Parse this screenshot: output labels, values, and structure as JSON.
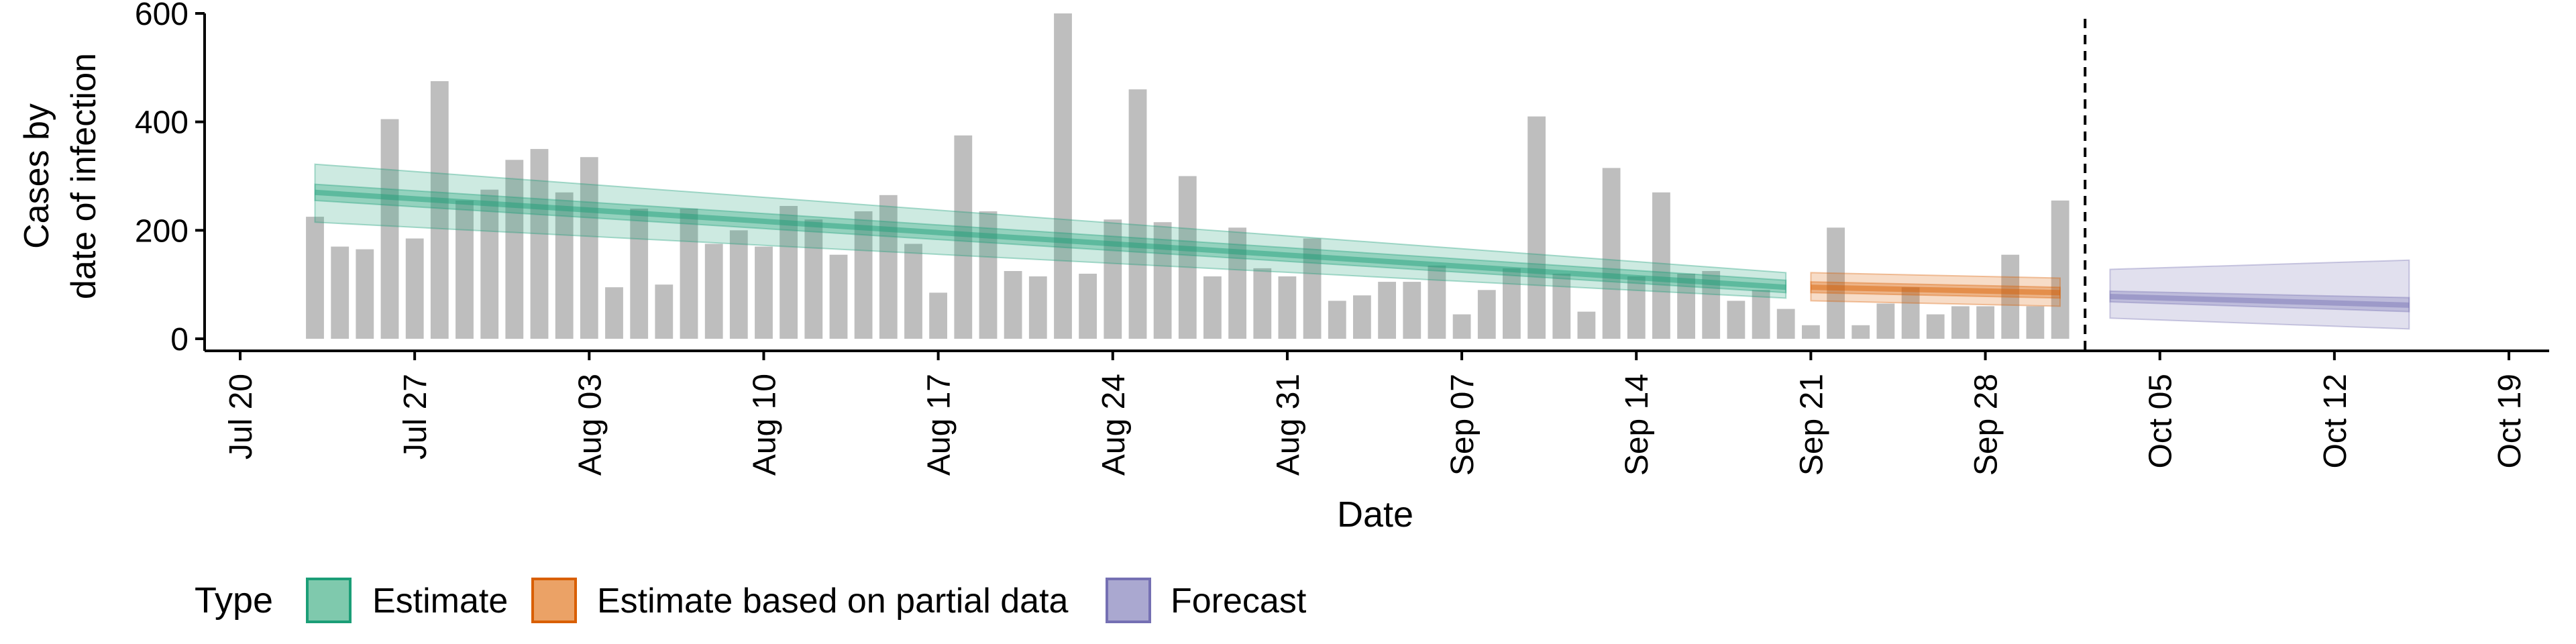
{
  "chart_data": {
    "type": "bar",
    "title": "",
    "xlabel": "Date",
    "ylabel_lines": [
      "Cases by",
      "date of infection"
    ],
    "ylim": [
      0,
      600
    ],
    "yticks": [
      0,
      200,
      400,
      600
    ],
    "xlim": [
      "2020-07-20",
      "2020-10-19"
    ],
    "xticks": [
      {
        "date": "2020-07-20",
        "label": "Jul 20"
      },
      {
        "date": "2020-07-27",
        "label": "Jul 27"
      },
      {
        "date": "2020-08-03",
        "label": "Aug 03"
      },
      {
        "date": "2020-08-10",
        "label": "Aug 10"
      },
      {
        "date": "2020-08-17",
        "label": "Aug 17"
      },
      {
        "date": "2020-08-24",
        "label": "Aug 24"
      },
      {
        "date": "2020-08-31",
        "label": "Aug 31"
      },
      {
        "date": "2020-09-07",
        "label": "Sep 07"
      },
      {
        "date": "2020-09-14",
        "label": "Sep 14"
      },
      {
        "date": "2020-09-21",
        "label": "Sep 21"
      },
      {
        "date": "2020-09-28",
        "label": "Sep 28"
      },
      {
        "date": "2020-10-05",
        "label": "Oct 05"
      },
      {
        "date": "2020-10-12",
        "label": "Oct 12"
      },
      {
        "date": "2020-10-19",
        "label": "Oct 19"
      }
    ],
    "bar_dates_start": "2020-07-23",
    "bar_values": [
      225,
      170,
      165,
      405,
      185,
      475,
      255,
      275,
      330,
      350,
      270,
      335,
      95,
      240,
      100,
      240,
      175,
      200,
      170,
      245,
      220,
      155,
      235,
      265,
      175,
      85,
      375,
      235,
      125,
      115,
      600,
      120,
      220,
      460,
      215,
      300,
      115,
      205,
      130,
      115,
      185,
      70,
      80,
      105,
      105,
      135,
      45,
      90,
      130,
      410,
      120,
      50,
      315,
      115,
      270,
      120,
      125,
      70,
      90,
      55,
      25,
      205,
      25,
      65,
      95,
      45,
      60,
      60,
      155,
      60,
      255
    ],
    "bar_color": "#bebebe",
    "forecast_date": "2020-10-02",
    "legend": {
      "title": "Type",
      "position": "bottom",
      "items": [
        {
          "label": "Estimate",
          "fill": "#7fc9ad",
          "stroke": "#1b9e77"
        },
        {
          "label": "Estimate based on partial data",
          "fill": "#eba266",
          "stroke": "#d95f02"
        },
        {
          "label": "Forecast",
          "fill": "#aaa8d0",
          "stroke": "#7570b3"
        }
      ]
    },
    "series": [
      {
        "name": "Estimate",
        "color": "#1b9e77",
        "start": "2020-07-23",
        "end": "2020-09-20",
        "median": [
          270,
          95
        ],
        "inner_band": [
          [
            255,
            285
          ],
          [
            85,
            108
          ]
        ],
        "outer_band": [
          [
            215,
            322
          ],
          [
            75,
            122
          ]
        ]
      },
      {
        "name": "Estimate based on partial data",
        "color": "#d95f02",
        "start": "2020-09-21",
        "end": "2020-10-01",
        "median": [
          95,
          85
        ],
        "inner_band": [
          [
            85,
            105
          ],
          [
            75,
            95
          ]
        ],
        "outer_band": [
          [
            70,
            122
          ],
          [
            60,
            112
          ]
        ]
      },
      {
        "name": "Forecast",
        "color": "#7570b3",
        "start": "2020-10-03",
        "end": "2020-10-15",
        "median": [
          78,
          62
        ],
        "inner_band": [
          [
            68,
            88
          ],
          [
            50,
            76
          ]
        ],
        "outer_band": [
          [
            38,
            128
          ],
          [
            18,
            145
          ]
        ]
      }
    ]
  }
}
